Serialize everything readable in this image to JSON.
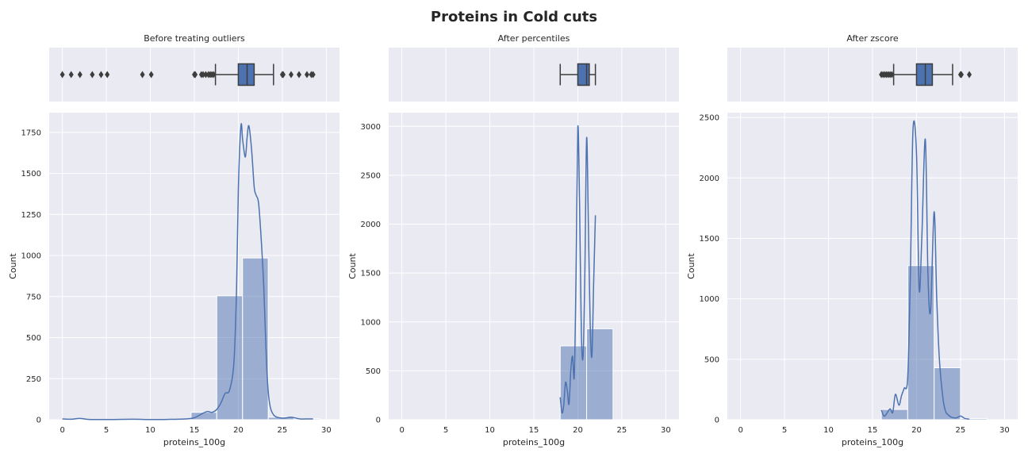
{
  "figure": {
    "title": "Proteins in Cold cuts"
  },
  "colors": {
    "panel_bg": "#EAEAF2",
    "grid": "#FFFFFF",
    "bar": "#4C72B0",
    "kde": "#4C72B0",
    "box_line": "#3D3D3D"
  },
  "chart_data": [
    {
      "type": "histogram",
      "title": "Before treating outliers",
      "xlabel": "proteins_100g",
      "ylabel": "Count",
      "xlim": [
        -1.5,
        31.5
      ],
      "ylim": [
        0,
        1870
      ],
      "xticks": [
        "0",
        "5",
        "10",
        "15",
        "20",
        "25",
        "30"
      ],
      "yticks": [
        "0",
        "250",
        "500",
        "750",
        "1000",
        "1250",
        "1500",
        "1750"
      ],
      "bins": [
        {
          "x0": 0,
          "x1": 2.93,
          "count": 5
        },
        {
          "x0": 2.93,
          "x1": 5.85,
          "count": 3
        },
        {
          "x0": 5.85,
          "x1": 8.78,
          "count": 1
        },
        {
          "x0": 8.78,
          "x1": 11.7,
          "count": 3
        },
        {
          "x0": 11.7,
          "x1": 14.63,
          "count": 1
        },
        {
          "x0": 14.63,
          "x1": 17.55,
          "count": 45
        },
        {
          "x0": 17.55,
          "x1": 20.48,
          "count": 755
        },
        {
          "x0": 20.48,
          "x1": 23.4,
          "count": 985
        },
        {
          "x0": 23.4,
          "x1": 26.33,
          "count": 15
        },
        {
          "x0": 26.33,
          "x1": 29.25,
          "count": 6
        }
      ],
      "kde": {
        "x": [
          0,
          1,
          2,
          3,
          5,
          8,
          10,
          12,
          14,
          15,
          16,
          16.5,
          17,
          17.5,
          18,
          18.5,
          19,
          19.5,
          19.8,
          20,
          20.3,
          20.5,
          20.8,
          21,
          21.2,
          21.5,
          21.8,
          22,
          22.3,
          22.6,
          22.9,
          23.2,
          23.5,
          24,
          25,
          26,
          27,
          28,
          28.5
        ],
        "y": [
          5,
          3,
          8,
          2,
          1,
          3,
          1,
          2,
          5,
          12,
          40,
          50,
          45,
          60,
          100,
          160,
          180,
          350,
          800,
          1400,
          1790,
          1700,
          1600,
          1720,
          1790,
          1650,
          1420,
          1370,
          1320,
          1100,
          800,
          350,
          120,
          30,
          10,
          15,
          5,
          5,
          5
        ]
      },
      "box": {
        "q1": 20,
        "median": 21,
        "q3": 21.8,
        "whisker_low": 17.4,
        "whisker_high": 24,
        "outliers": [
          0,
          1,
          2,
          3.4,
          4.4,
          5.1,
          9.1,
          10.1,
          15,
          15.1,
          15.8,
          16,
          16.3,
          16.6,
          16.8,
          17,
          17.2,
          25,
          25.1,
          26,
          26.9,
          27.8,
          28.3,
          28.5
        ]
      }
    },
    {
      "type": "histogram",
      "title": "After percentiles",
      "xlabel": "proteins_100g",
      "ylabel": "Count",
      "xlim": [
        -1.5,
        31.5
      ],
      "ylim": [
        0,
        3140
      ],
      "xticks": [
        "0",
        "5",
        "10",
        "15",
        "20",
        "25",
        "30"
      ],
      "yticks": [
        "0",
        "500",
        "1000",
        "1500",
        "2000",
        "2500",
        "3000"
      ],
      "bins": [
        {
          "x0": 18,
          "x1": 21,
          "count": 755
        },
        {
          "x0": 21,
          "x1": 24,
          "count": 930
        }
      ],
      "kde": {
        "x": [
          18,
          18.2,
          18.4,
          18.6,
          18.8,
          19,
          19.2,
          19.4,
          19.6,
          19.8,
          20,
          20.2,
          20.4,
          20.6,
          20.8,
          21,
          21.2,
          21.4,
          21.6,
          21.8,
          22
        ],
        "y": [
          230,
          70,
          150,
          380,
          300,
          160,
          500,
          650,
          450,
          1500,
          2990,
          2200,
          900,
          650,
          1500,
          2880,
          2000,
          1000,
          650,
          1400,
          2090
        ]
      },
      "box": {
        "q1": 20,
        "median": 21,
        "q3": 21.3,
        "whisker_low": 18,
        "whisker_high": 22,
        "outliers": []
      }
    },
    {
      "type": "histogram",
      "title": "After zscore",
      "xlabel": "proteins_100g",
      "ylabel": "Count",
      "xlim": [
        -1.5,
        31.5
      ],
      "ylim": [
        0,
        2540
      ],
      "xticks": [
        "0",
        "5",
        "10",
        "15",
        "20",
        "25",
        "30"
      ],
      "yticks": [
        "0",
        "500",
        "1000",
        "1500",
        "2000",
        "2500"
      ],
      "bins": [
        {
          "x0": 16,
          "x1": 19,
          "count": 85
        },
        {
          "x0": 19,
          "x1": 22,
          "count": 1275
        },
        {
          "x0": 22,
          "x1": 25,
          "count": 430
        },
        {
          "x0": 25,
          "x1": 28,
          "count": 10
        }
      ],
      "kde": {
        "x": [
          16,
          16.3,
          16.6,
          17,
          17.3,
          17.6,
          18,
          18.3,
          18.6,
          19,
          19.3,
          19.6,
          20,
          20.3,
          20.6,
          21,
          21.3,
          21.6,
          22,
          22.3,
          22.6,
          23,
          23.3,
          23.6,
          24,
          24.5,
          25,
          25.5,
          26
        ],
        "y": [
          80,
          30,
          50,
          90,
          60,
          210,
          120,
          200,
          260,
          350,
          1200,
          2400,
          2200,
          1080,
          1500,
          2320,
          1200,
          900,
          1720,
          1000,
          500,
          180,
          70,
          40,
          20,
          15,
          30,
          10,
          5
        ]
      },
      "box": {
        "q1": 20,
        "median": 21,
        "q3": 21.8,
        "whisker_low": 17.4,
        "whisker_high": 24.1,
        "outliers": [
          16,
          16.2,
          16.4,
          16.6,
          16.8,
          17,
          17.2,
          25,
          25.1,
          26
        ]
      }
    }
  ]
}
